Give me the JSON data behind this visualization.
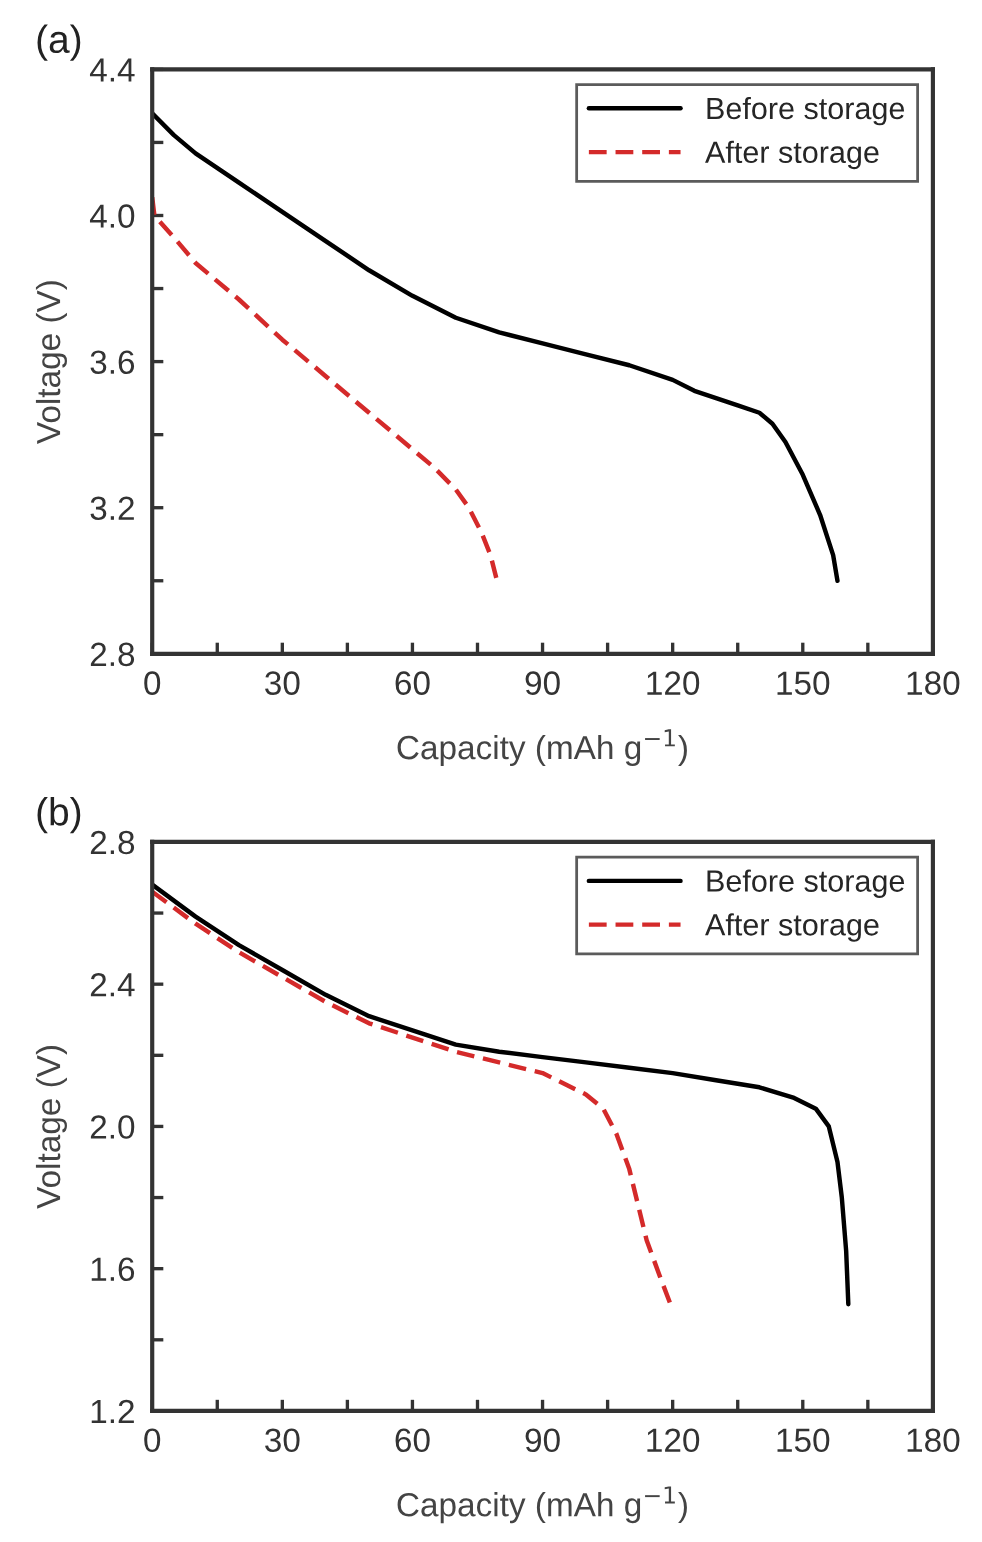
{
  "chart_data": [
    {
      "type": "line",
      "title": "(a)",
      "xlabel": "Capacity (mAh g$^{−1}$)",
      "ylabel": "Voltage (V)",
      "xlim": [
        0,
        180
      ],
      "ylim": [
        2.8,
        4.4
      ],
      "xticks": [
        0,
        {
          "value": 15,
          "label": null
        },
        30,
        {
          "value": 45,
          "label": null
        },
        60,
        {
          "value": 75,
          "label": null
        },
        90,
        {
          "value": 105,
          "label": null
        },
        120,
        {
          "value": 135,
          "label": null
        },
        150,
        {
          "value": 165,
          "label": null
        },
        180
      ],
      "yticks": [
        {
          "value": 2.8,
          "label": "2.8"
        },
        {
          "value": 3.0,
          "label": null
        },
        {
          "value": 3.2,
          "label": "3.2"
        },
        {
          "value": 3.4,
          "label": null
        },
        {
          "value": 3.6,
          "label": "3.6"
        },
        {
          "value": 3.8,
          "label": null
        },
        {
          "value": 4.0,
          "label": "4.0"
        },
        {
          "value": 4.2,
          "label": null
        },
        {
          "value": 4.4,
          "label": "4.4"
        }
      ],
      "grid": false,
      "legend": "top right",
      "marker": "none",
      "series": [
        {
          "name": "Before storage",
          "color": "#000000",
          "line_style": "solid",
          "x": [
            0,
            5,
            10,
            20,
            30,
            40,
            50,
            60,
            70,
            80,
            90,
            100,
            110,
            120,
            125,
            130,
            135,
            140,
            143,
            146,
            150,
            154,
            157,
            158
          ],
          "values": [
            4.28,
            4.22,
            4.17,
            4.09,
            4.01,
            3.93,
            3.85,
            3.78,
            3.72,
            3.68,
            3.65,
            3.62,
            3.59,
            3.55,
            3.52,
            3.5,
            3.48,
            3.46,
            3.43,
            3.38,
            3.29,
            3.18,
            3.07,
            3.0
          ]
        },
        {
          "name": "After storage",
          "color": "#d42a2a",
          "line_style": "dashed",
          "x": [
            0,
            0.5,
            5,
            10,
            20,
            30,
            40,
            50,
            60,
            65,
            70,
            73,
            76,
            78,
            79.5
          ],
          "values": [
            4.05,
            4.0,
            3.94,
            3.87,
            3.77,
            3.66,
            3.56,
            3.46,
            3.36,
            3.31,
            3.25,
            3.2,
            3.13,
            3.07,
            3.0
          ]
        }
      ]
    },
    {
      "type": "line",
      "title": "(b)",
      "xlabel": "Capacity (mAh g$^{−1}$)",
      "ylabel": "Voltage (V)",
      "xlim": [
        0,
        180
      ],
      "ylim": [
        1.2,
        2.8
      ],
      "xticks": [
        0,
        {
          "value": 15,
          "label": null
        },
        30,
        {
          "value": 45,
          "label": null
        },
        60,
        {
          "value": 75,
          "label": null
        },
        90,
        {
          "value": 105,
          "label": null
        },
        120,
        {
          "value": 135,
          "label": null
        },
        150,
        {
          "value": 165,
          "label": null
        },
        180
      ],
      "yticks": [
        {
          "value": 1.2,
          "label": "1.2"
        },
        {
          "value": 1.4,
          "label": null
        },
        {
          "value": 1.6,
          "label": "1.6"
        },
        {
          "value": 1.8,
          "label": null
        },
        {
          "value": 2.0,
          "label": "2.0"
        },
        {
          "value": 2.2,
          "label": null
        },
        {
          "value": 2.4,
          "label": "2.4"
        },
        {
          "value": 2.6,
          "label": null
        },
        {
          "value": 2.8,
          "label": "2.8"
        }
      ],
      "grid": false,
      "legend": "top right",
      "marker": "none",
      "series": [
        {
          "name": "Before storage",
          "color": "#000000",
          "line_style": "solid",
          "x": [
            0,
            10,
            20,
            30,
            40,
            50,
            60,
            70,
            80,
            90,
            100,
            110,
            120,
            130,
            140,
            148,
            153,
            156,
            158,
            159,
            160,
            160.5
          ],
          "values": [
            2.68,
            2.59,
            2.51,
            2.44,
            2.37,
            2.31,
            2.27,
            2.23,
            2.21,
            2.195,
            2.18,
            2.165,
            2.15,
            2.13,
            2.11,
            2.08,
            2.05,
            2.0,
            1.9,
            1.8,
            1.65,
            1.5
          ]
        },
        {
          "name": "After storage",
          "color": "#d42a2a",
          "line_style": "dashed",
          "x": [
            0,
            10,
            20,
            30,
            40,
            50,
            60,
            70,
            80,
            90,
            100,
            104,
            107,
            110,
            112,
            114,
            117,
            119.5
          ],
          "values": [
            2.66,
            2.57,
            2.49,
            2.42,
            2.35,
            2.29,
            2.25,
            2.21,
            2.18,
            2.15,
            2.09,
            2.05,
            1.98,
            1.88,
            1.78,
            1.68,
            1.58,
            1.5
          ]
        }
      ]
    }
  ]
}
